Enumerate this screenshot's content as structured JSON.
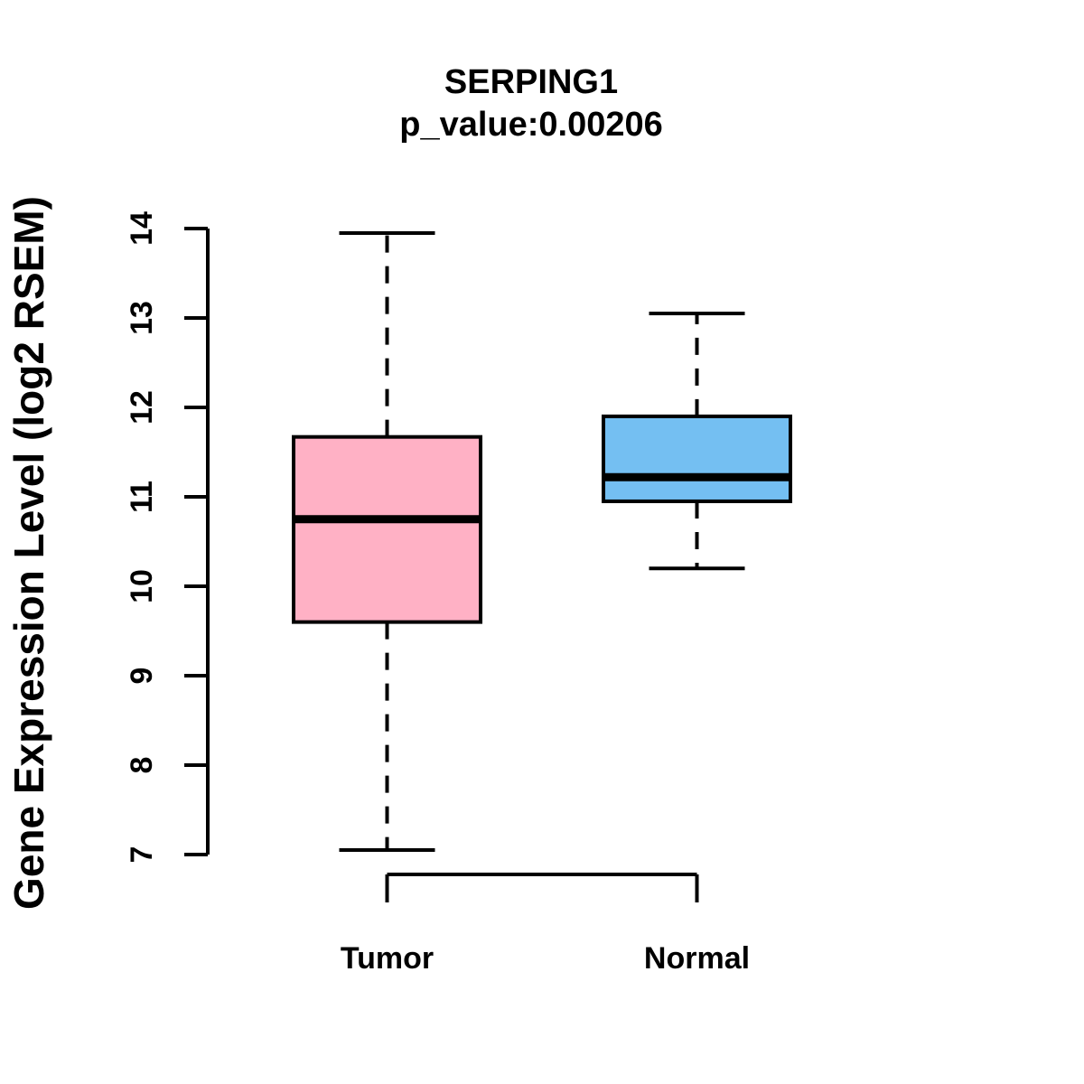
{
  "figure": {
    "title": "SERPING1",
    "subtitle": "p_value:0.00206"
  },
  "chart_data": {
    "type": "boxplot",
    "title": "SERPING1",
    "subtitle": "p_value:0.00206",
    "gene": "SERPING1",
    "p_value": "0.00206",
    "ylabel": "Gene Expression Level (log2 RSEM)",
    "xlabel": "",
    "ylim": [
      7,
      14
    ],
    "yticks": [
      7,
      8,
      9,
      10,
      11,
      12,
      13,
      14
    ],
    "grid": false,
    "legend": null,
    "categories": [
      "Tumor",
      "Normal"
    ],
    "series": [
      {
        "name": "Tumor",
        "color": "#FFB1C5",
        "whisker_low": 7.05,
        "q1": 9.6,
        "median": 10.75,
        "q3": 11.67,
        "whisker_high": 13.95
      },
      {
        "name": "Normal",
        "color": "#74BFF2",
        "whisker_low": 10.2,
        "q1": 10.95,
        "median": 11.22,
        "q3": 11.9,
        "whisker_high": 13.05
      }
    ],
    "colors": {
      "stroke": "#000000",
      "background": "#FFFFFF"
    }
  }
}
